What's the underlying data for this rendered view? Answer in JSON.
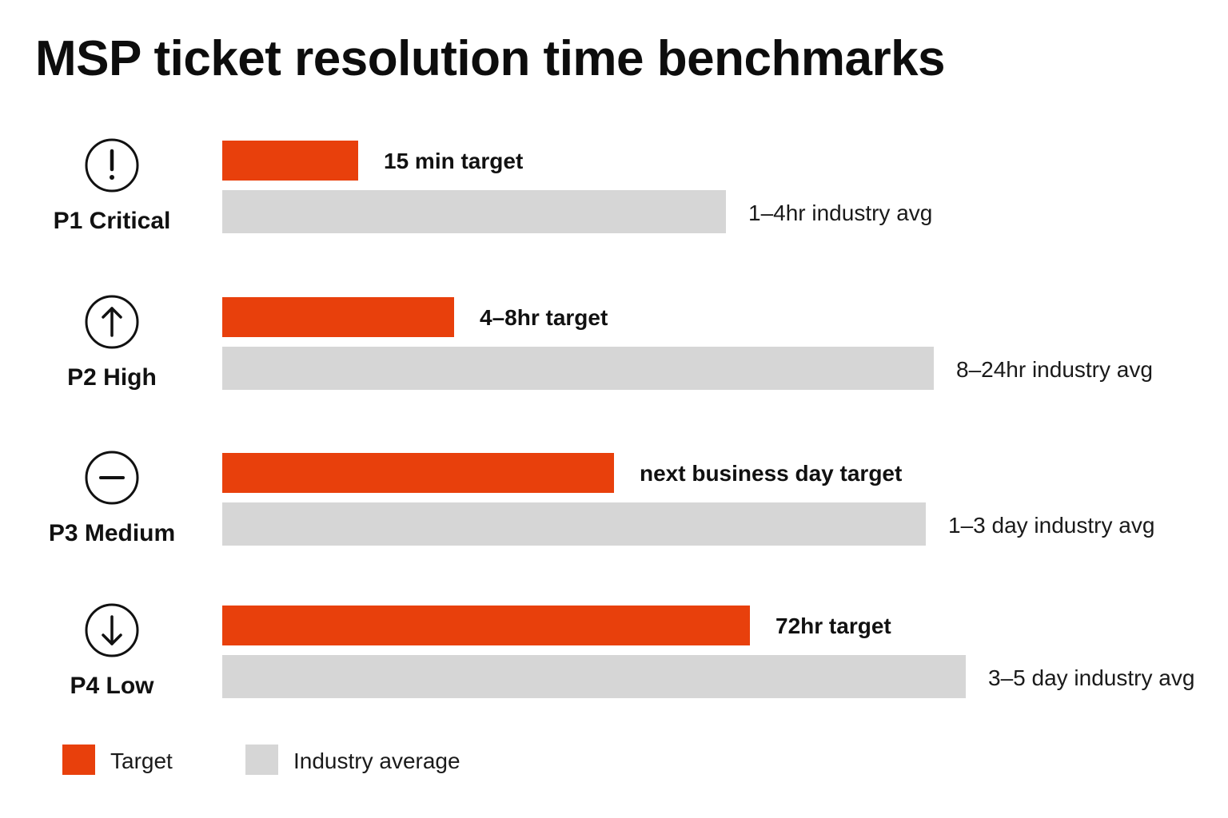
{
  "chart_data": {
    "type": "bar",
    "orientation": "horizontal",
    "title": "MSP ticket resolution time benchmarks",
    "categories": [
      "P1 Critical",
      "P2 High",
      "P3 Medium",
      "P4 Low"
    ],
    "icons": [
      "exclamation-circle-icon",
      "arrow-up-circle-icon",
      "minus-circle-icon",
      "arrow-down-circle-icon"
    ],
    "series": [
      {
        "name": "Target",
        "color": "#e8400c",
        "values": [
          0.17,
          0.29,
          0.49,
          0.66
        ],
        "labels": [
          "15 min target",
          "4–8hr target",
          "next business day target",
          "72hr target"
        ]
      },
      {
        "name": "Industry average",
        "color": "#d6d6d6",
        "values": [
          0.63,
          0.89,
          0.88,
          0.93
        ],
        "labels": [
          "1–4hr industry avg",
          "8–24hr industry avg",
          "1–3 day industry avg",
          "3–5 day industry avg"
        ]
      }
    ],
    "value_scale": "relative bar length (fraction of full scale, no axis shown)",
    "xlabel": "",
    "ylabel": "",
    "grid": false,
    "legend": {
      "position": "bottom-left",
      "items": [
        "Target",
        "Industry average"
      ]
    }
  }
}
